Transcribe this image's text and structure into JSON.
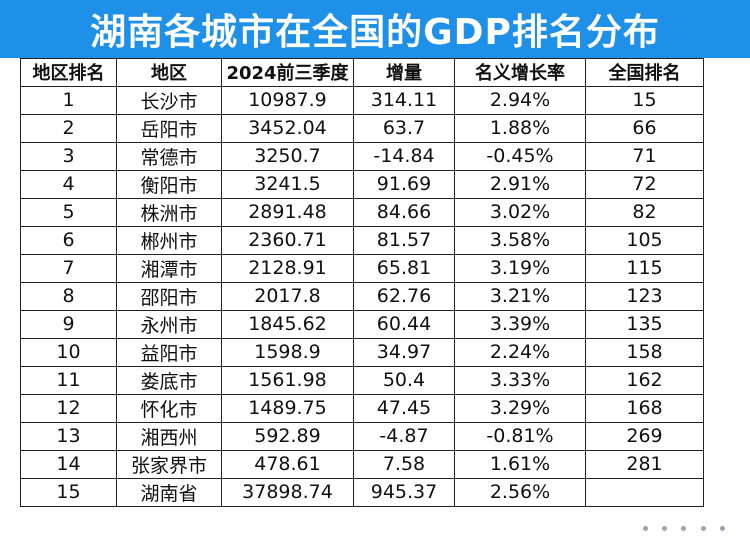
{
  "title": "湖南各城市在全国的GDP排名分布",
  "columns": [
    "地区排名",
    "地区",
    "2024前三季度",
    "增量",
    "名义增长率",
    "全国排名"
  ],
  "rows": [
    [
      "1",
      "长沙市",
      "10987.9",
      "314.11",
      "2.94%",
      "15"
    ],
    [
      "2",
      "岳阳市",
      "3452.04",
      "63.7",
      "1.88%",
      "66"
    ],
    [
      "3",
      "常德市",
      "3250.7",
      "-14.84",
      "-0.45%",
      "71"
    ],
    [
      "4",
      "衡阳市",
      "3241.5",
      "91.69",
      "2.91%",
      "72"
    ],
    [
      "5",
      "株洲市",
      "2891.48",
      "84.66",
      "3.02%",
      "82"
    ],
    [
      "6",
      "郴州市",
      "2360.71",
      "81.57",
      "3.58%",
      "105"
    ],
    [
      "7",
      "湘潭市",
      "2128.91",
      "65.81",
      "3.19%",
      "115"
    ],
    [
      "8",
      "邵阳市",
      "2017.8",
      "62.76",
      "3.21%",
      "123"
    ],
    [
      "9",
      "永州市",
      "1845.62",
      "60.44",
      "3.39%",
      "135"
    ],
    [
      "10",
      "益阳市",
      "1598.9",
      "34.97",
      "2.24%",
      "158"
    ],
    [
      "11",
      "娄底市",
      "1561.98",
      "50.4",
      "3.33%",
      "162"
    ],
    [
      "12",
      "怀化市",
      "1489.75",
      "47.45",
      "3.29%",
      "168"
    ],
    [
      "13",
      "湘西州",
      "592.89",
      "-4.87",
      "-0.81%",
      "269"
    ],
    [
      "14",
      "张家界市",
      "478.61",
      "7.58",
      "1.61%",
      "281"
    ],
    [
      "15",
      "湖南省",
      "37898.74",
      "945.37",
      "2.56%",
      ""
    ]
  ],
  "colors": {
    "title_background": "#1e90e8",
    "title_text": "#ffffff",
    "grid_line": "#222222"
  }
}
